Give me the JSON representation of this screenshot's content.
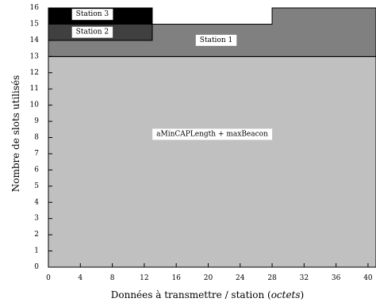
{
  "chart_data": {
    "type": "area",
    "title": "",
    "xlabel_main": "Données à transmettre / station (",
    "xlabel_unit": "octets",
    "xlabel_close": ")",
    "ylabel": "Nombre de slots utilisés",
    "xlim": [
      0,
      41
    ],
    "ylim": [
      0,
      16
    ],
    "xticks": [
      0,
      4,
      8,
      12,
      16,
      20,
      24,
      28,
      32,
      36,
      40
    ],
    "yticks": [
      0,
      1,
      2,
      3,
      4,
      5,
      6,
      7,
      8,
      9,
      10,
      11,
      12,
      13,
      14,
      15,
      16
    ],
    "regions": [
      {
        "name": "aMinCAPLength + maxBeacon",
        "color": "#c0c0c0",
        "steps": [
          [
            0,
            0,
            13
          ],
          [
            41,
            0,
            13
          ]
        ]
      },
      {
        "name": "Station 1",
        "color": "#808080",
        "steps": [
          [
            0,
            13,
            14
          ],
          [
            13,
            13,
            15
          ],
          [
            28,
            13,
            16
          ],
          [
            41,
            13,
            16
          ]
        ]
      },
      {
        "name": "Station 2",
        "color": "#404040",
        "steps": [
          [
            0,
            14,
            15
          ],
          [
            13,
            14,
            15
          ]
        ]
      },
      {
        "name": "Station 3",
        "color": "#000000",
        "steps": [
          [
            0,
            15,
            16
          ],
          [
            13,
            15,
            16
          ]
        ]
      }
    ],
    "labels": [
      {
        "text": "aMinCAPLength + maxBeacon",
        "x": 20.5,
        "y": 8.2
      },
      {
        "text": "Station 1",
        "x": 21,
        "y": 14.0
      },
      {
        "text": "Station 2",
        "x": 5.5,
        "y": 14.5
      },
      {
        "text": "Station 3",
        "x": 5.5,
        "y": 15.6
      }
    ]
  }
}
